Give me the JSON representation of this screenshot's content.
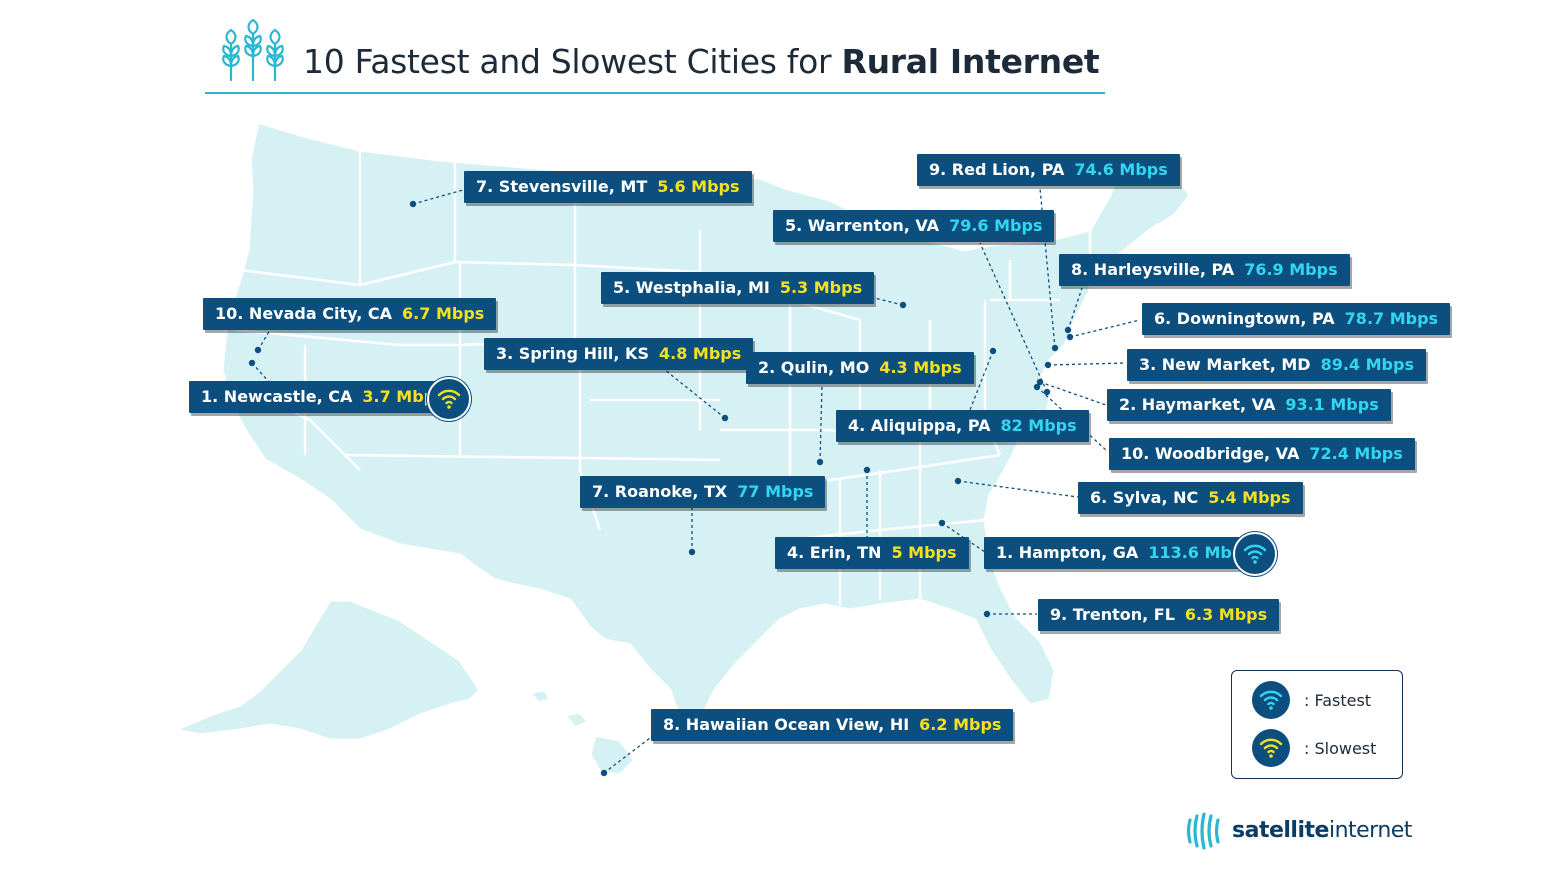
{
  "title": {
    "prefix": "10 Fastest and Slowest Cities for ",
    "emphasis": "Rural Internet"
  },
  "colors": {
    "map_fill": "#d5f1f4",
    "state_border": "#ffffff",
    "label_bg": "#0c4f7e",
    "fast_speed": "#33d6f0",
    "slow_speed": "#f5e11e",
    "accent": "#2bb7d1"
  },
  "cities": [
    {
      "rank": "10.",
      "name": "Nevada City, CA",
      "speed": "6.7 Mbps",
      "category": "slowest"
    },
    {
      "rank": "1.",
      "name": "Newcastle, CA",
      "speed": "3.7 Mbps",
      "category": "slowest",
      "badge": true
    },
    {
      "rank": "7.",
      "name": "Stevensville, MT",
      "speed": "5.6 Mbps",
      "category": "slowest"
    },
    {
      "rank": "5.",
      "name": "Westphalia, MI",
      "speed": "5.3 Mbps",
      "category": "slowest"
    },
    {
      "rank": "3.",
      "name": "Spring Hill, KS",
      "speed": "4.8 Mbps",
      "category": "slowest"
    },
    {
      "rank": "2.",
      "name": "Qulin, MO",
      "speed": "4.3 Mbps",
      "category": "slowest"
    },
    {
      "rank": "7.",
      "name": "Roanoke, TX",
      "speed": "77 Mbps",
      "category": "fastest"
    },
    {
      "rank": "4.",
      "name": "Erin, TN",
      "speed": "5 Mbps",
      "category": "slowest"
    },
    {
      "rank": "8.",
      "name": "Hawaiian Ocean View, HI",
      "speed": "6.2 Mbps",
      "category": "slowest"
    },
    {
      "rank": "9.",
      "name": "Red Lion, PA",
      "speed": "74.6 Mbps",
      "category": "fastest"
    },
    {
      "rank": "5.",
      "name": "Warrenton, VA",
      "speed": "79.6 Mbps",
      "category": "fastest"
    },
    {
      "rank": "8.",
      "name": "Harleysville, PA",
      "speed": "76.9 Mbps",
      "category": "fastest"
    },
    {
      "rank": "6.",
      "name": "Downingtown, PA",
      "speed": "78.7 Mbps",
      "category": "fastest"
    },
    {
      "rank": "3.",
      "name": "New Market, MD",
      "speed": "89.4 Mbps",
      "category": "fastest"
    },
    {
      "rank": "2.",
      "name": "Haymarket, VA",
      "speed": "93.1 Mbps",
      "category": "fastest"
    },
    {
      "rank": "4.",
      "name": "Aliquippa, PA",
      "speed": "82 Mbps",
      "category": "fastest"
    },
    {
      "rank": "10.",
      "name": "Woodbridge, VA",
      "speed": "72.4 Mbps",
      "category": "fastest"
    },
    {
      "rank": "6.",
      "name": "Sylva, NC",
      "speed": "5.4 Mbps",
      "category": "slowest"
    },
    {
      "rank": "1.",
      "name": "Hampton, GA",
      "speed": "113.6 Mbps",
      "category": "fastest",
      "badge": true
    },
    {
      "rank": "9.",
      "name": "Trenton, FL",
      "speed": "6.3 Mbps",
      "category": "slowest"
    }
  ],
  "legend": {
    "fastest": ":  Fastest",
    "slowest": ":  Slowest"
  },
  "brand": {
    "part1": "satellite",
    "part2": "internet"
  }
}
